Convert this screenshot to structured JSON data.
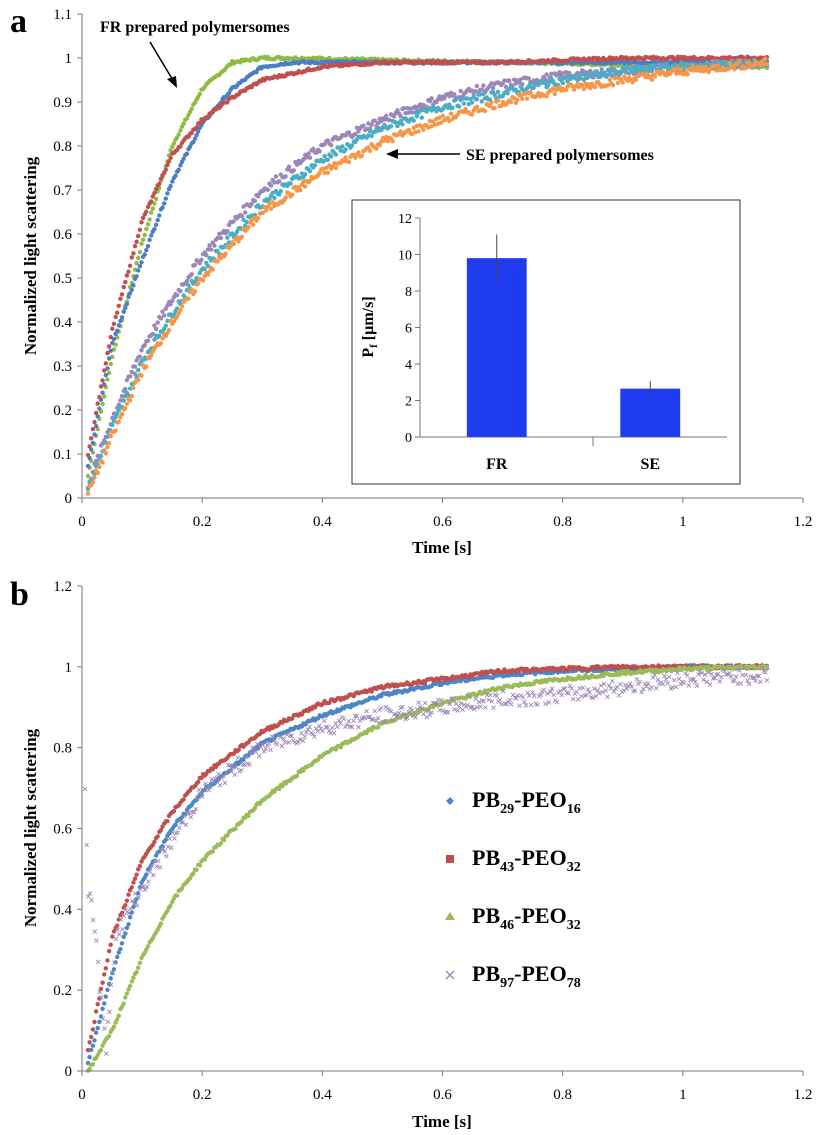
{
  "chart_data": [
    {
      "panel": "a",
      "type": "scatter",
      "xlabel": "Time [s]",
      "ylabel": "Normalized light scattering",
      "xlim": [
        0,
        1.2
      ],
      "ylim": [
        0,
        1.1
      ],
      "xticks": [
        "0",
        "0.2",
        "0.4",
        "0.6",
        "0.8",
        "1",
        "1.2"
      ],
      "yticks": [
        "0",
        "0.1",
        "0.2",
        "0.3",
        "0.4",
        "0.5",
        "0.6",
        "0.7",
        "0.8",
        "0.9",
        "1",
        "1.1"
      ],
      "grid": false,
      "annotations": [
        "FR prepared polymersomes",
        "SE prepared polymersomes"
      ],
      "series": [
        {
          "group": "FR",
          "color": "#8fbb45",
          "x": [
            0.01,
            0.05,
            0.1,
            0.15,
            0.2,
            0.25,
            0.3,
            0.35,
            0.5,
            0.7,
            0.9,
            1.14
          ],
          "y": [
            0.05,
            0.32,
            0.58,
            0.8,
            0.93,
            0.99,
            1.0,
            1.0,
            0.995,
            0.99,
            0.985,
            0.98
          ]
        },
        {
          "group": "FR",
          "color": "#4a7ec6",
          "x": [
            0.01,
            0.05,
            0.1,
            0.15,
            0.2,
            0.25,
            0.3,
            0.35,
            0.5,
            0.7,
            0.9,
            1.14
          ],
          "y": [
            0.07,
            0.35,
            0.54,
            0.72,
            0.85,
            0.93,
            0.98,
            0.99,
            0.99,
            0.99,
            0.99,
            0.99
          ]
        },
        {
          "group": "FR",
          "color": "#c0504d",
          "x": [
            0.01,
            0.05,
            0.1,
            0.15,
            0.2,
            0.25,
            0.3,
            0.4,
            0.5,
            0.7,
            0.9,
            1.14
          ],
          "y": [
            0.1,
            0.38,
            0.63,
            0.78,
            0.86,
            0.91,
            0.95,
            0.98,
            0.99,
            0.99,
            1.0,
            1.0
          ]
        },
        {
          "group": "SE",
          "color": "#9b87b8",
          "x": [
            0.01,
            0.05,
            0.1,
            0.15,
            0.2,
            0.3,
            0.4,
            0.5,
            0.6,
            0.7,
            0.8,
            0.9,
            1.0,
            1.14
          ],
          "y": [
            0.03,
            0.18,
            0.34,
            0.45,
            0.55,
            0.7,
            0.8,
            0.86,
            0.91,
            0.94,
            0.96,
            0.97,
            0.98,
            0.99
          ]
        },
        {
          "group": "SE",
          "color": "#4bacc6",
          "x": [
            0.01,
            0.05,
            0.1,
            0.15,
            0.2,
            0.3,
            0.4,
            0.5,
            0.6,
            0.7,
            0.8,
            0.9,
            1.0,
            1.14
          ],
          "y": [
            0.02,
            0.16,
            0.31,
            0.42,
            0.52,
            0.67,
            0.77,
            0.84,
            0.89,
            0.92,
            0.95,
            0.97,
            0.98,
            0.99
          ]
        },
        {
          "group": "SE",
          "color": "#f79646",
          "x": [
            0.01,
            0.05,
            0.1,
            0.15,
            0.2,
            0.3,
            0.4,
            0.5,
            0.6,
            0.7,
            0.8,
            0.9,
            1.0,
            1.14
          ],
          "y": [
            0.01,
            0.14,
            0.29,
            0.4,
            0.5,
            0.65,
            0.74,
            0.81,
            0.86,
            0.9,
            0.93,
            0.95,
            0.97,
            0.99
          ]
        }
      ],
      "inset": {
        "type": "bar",
        "ylabel": "P",
        "ylabel_subscript": "f",
        "ylabel_unit": " [µm/s]",
        "ylim": [
          0,
          12
        ],
        "yticks": [
          "0",
          "2",
          "4",
          "6",
          "8",
          "10",
          "12"
        ],
        "categories": [
          "FR",
          "SE"
        ],
        "values": [
          9.8,
          2.65
        ],
        "errors": [
          1.3,
          0.4
        ],
        "color": "#1f3cf0"
      }
    },
    {
      "panel": "b",
      "type": "scatter",
      "xlabel": "Time [s]",
      "ylabel": "Normalized light scattering",
      "xlim": [
        0,
        1.2
      ],
      "ylim": [
        0,
        1.2
      ],
      "xticks": [
        "0",
        "0.2",
        "0.4",
        "0.6",
        "0.8",
        "1",
        "1.2"
      ],
      "yticks": [
        "0",
        "0.2",
        "0.4",
        "0.6",
        "0.8",
        "1",
        "1.2"
      ],
      "grid": false,
      "legend_position": "center-right",
      "series": [
        {
          "base": "PB",
          "base_sub": "29",
          "sep": "-",
          "block": "PEO",
          "block_sub": "16",
          "color": "#4a86c8",
          "marker": "diamond",
          "x": [
            0.01,
            0.05,
            0.1,
            0.15,
            0.2,
            0.3,
            0.4,
            0.5,
            0.6,
            0.7,
            0.8,
            0.9,
            1.0,
            1.14
          ],
          "y": [
            0.02,
            0.24,
            0.47,
            0.6,
            0.69,
            0.81,
            0.88,
            0.93,
            0.96,
            0.98,
            0.99,
            0.995,
            1.0,
            1.0
          ]
        },
        {
          "base": "PB",
          "base_sub": "43",
          "sep": "-",
          "block": "PEO",
          "block_sub": "32",
          "color": "#c0504d",
          "marker": "square",
          "x": [
            0.01,
            0.05,
            0.1,
            0.15,
            0.2,
            0.3,
            0.4,
            0.5,
            0.6,
            0.7,
            0.8,
            0.9,
            1.0,
            1.14
          ],
          "y": [
            0.05,
            0.33,
            0.52,
            0.64,
            0.73,
            0.84,
            0.91,
            0.95,
            0.97,
            0.99,
            0.995,
            1.0,
            1.0,
            1.0
          ]
        },
        {
          "base": "PB",
          "base_sub": "46",
          "sep": "-",
          "block": "PEO",
          "block_sub": "32",
          "color": "#9bbb59",
          "marker": "triangle",
          "x": [
            0.01,
            0.05,
            0.1,
            0.15,
            0.2,
            0.3,
            0.4,
            0.5,
            0.6,
            0.7,
            0.8,
            0.9,
            1.0,
            1.14
          ],
          "y": [
            0.0,
            0.1,
            0.28,
            0.42,
            0.52,
            0.67,
            0.78,
            0.86,
            0.91,
            0.95,
            0.97,
            0.985,
            0.995,
            1.0
          ]
        },
        {
          "base": "PB",
          "base_sub": "97",
          "sep": "-",
          "block": "PEO",
          "block_sub": "78",
          "color": "#9b87b8",
          "marker": "x",
          "x": [
            0.005,
            0.01,
            0.02,
            0.03,
            0.04,
            0.05,
            0.06,
            0.08,
            0.1,
            0.12,
            0.15,
            0.2,
            0.3,
            0.4,
            0.5,
            0.6,
            0.7,
            0.8,
            0.9,
            1.0,
            1.14
          ],
          "y": [
            0.7,
            0.45,
            0.38,
            0.2,
            0.05,
            0.25,
            0.35,
            0.4,
            0.45,
            0.5,
            0.57,
            0.69,
            0.8,
            0.85,
            0.88,
            0.9,
            0.92,
            0.93,
            0.95,
            0.97,
            0.98
          ]
        }
      ]
    }
  ]
}
